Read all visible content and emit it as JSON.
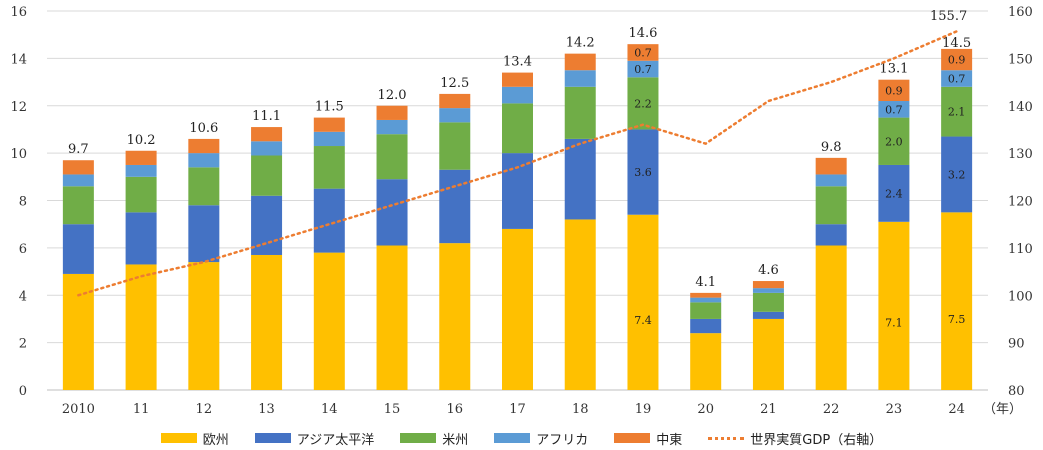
{
  "chart_data": {
    "type": "bar",
    "stacked": true,
    "categories": [
      "2010",
      "11",
      "12",
      "13",
      "14",
      "15",
      "16",
      "17",
      "18",
      "19",
      "20",
      "21",
      "22",
      "23",
      "24"
    ],
    "x_unit_label": "（年）",
    "series": [
      {
        "name": "欧州",
        "color": "#FFC000",
        "values": [
          4.9,
          5.3,
          5.4,
          5.7,
          5.8,
          6.1,
          6.2,
          6.8,
          7.2,
          7.4,
          2.4,
          3.0,
          6.1,
          7.1,
          7.5
        ]
      },
      {
        "name": "アジア太平洋",
        "color": "#4472C4",
        "values": [
          2.1,
          2.2,
          2.4,
          2.5,
          2.7,
          2.8,
          3.1,
          3.2,
          3.4,
          3.6,
          0.6,
          0.3,
          0.9,
          2.4,
          3.2
        ]
      },
      {
        "name": "米州",
        "color": "#70AD47",
        "values": [
          1.6,
          1.5,
          1.6,
          1.7,
          1.8,
          1.9,
          2.0,
          2.1,
          2.2,
          2.2,
          0.7,
          0.8,
          1.6,
          2.0,
          2.1
        ]
      },
      {
        "name": "アフリカ",
        "color": "#5B9BD5",
        "values": [
          0.5,
          0.5,
          0.6,
          0.6,
          0.6,
          0.6,
          0.6,
          0.7,
          0.7,
          0.7,
          0.2,
          0.2,
          0.5,
          0.7,
          0.7
        ]
      },
      {
        "name": "中東",
        "color": "#ED7D31",
        "values": [
          0.6,
          0.6,
          0.6,
          0.6,
          0.6,
          0.6,
          0.6,
          0.6,
          0.7,
          0.7,
          0.2,
          0.3,
          0.7,
          0.9,
          0.9
        ]
      }
    ],
    "line_series": {
      "name": "世界実質GDP（右軸）",
      "color": "#ED7D31",
      "axis": "right",
      "values": [
        100,
        104,
        107,
        111,
        115,
        119,
        123,
        127,
        132,
        136,
        132,
        141,
        145,
        150,
        155.7
      ]
    },
    "totals": [
      "9.7",
      "10.2",
      "10.6",
      "11.1",
      "11.5",
      "12.0",
      "12.5",
      "13.4",
      "14.2",
      "14.6",
      "4.1",
      "4.6",
      "9.8",
      "13.1",
      "14.5"
    ],
    "segment_labels": [
      {
        "category_index": 9,
        "series_index": 0,
        "text": "7.4"
      },
      {
        "category_index": 9,
        "series_index": 1,
        "text": "3.6"
      },
      {
        "category_index": 9,
        "series_index": 2,
        "text": "2.2"
      },
      {
        "category_index": 9,
        "series_index": 3,
        "text": "0.7"
      },
      {
        "category_index": 9,
        "series_index": 4,
        "text": "0.7"
      },
      {
        "category_index": 13,
        "series_index": 0,
        "text": "7.1"
      },
      {
        "category_index": 13,
        "series_index": 1,
        "text": "2.4"
      },
      {
        "category_index": 13,
        "series_index": 2,
        "text": "2.0"
      },
      {
        "category_index": 13,
        "series_index": 3,
        "text": "0.7"
      },
      {
        "category_index": 13,
        "series_index": 4,
        "text": "0.9"
      },
      {
        "category_index": 14,
        "series_index": 0,
        "text": "7.5"
      },
      {
        "category_index": 14,
        "series_index": 1,
        "text": "3.2"
      },
      {
        "category_index": 14,
        "series_index": 2,
        "text": "2.1"
      },
      {
        "category_index": 14,
        "series_index": 3,
        "text": "0.7"
      },
      {
        "category_index": 14,
        "series_index": 4,
        "text": "0.9"
      }
    ],
    "line_end_label": "155.7",
    "y_left": {
      "min": 0,
      "max": 16,
      "ticks": [
        0,
        2,
        4,
        6,
        8,
        10,
        12,
        14,
        16
      ]
    },
    "y_right": {
      "min": 80,
      "max": 160,
      "ticks": [
        80,
        90,
        100,
        110,
        120,
        130,
        140,
        150,
        160
      ]
    },
    "grid": true,
    "legend_position": "bottom"
  }
}
